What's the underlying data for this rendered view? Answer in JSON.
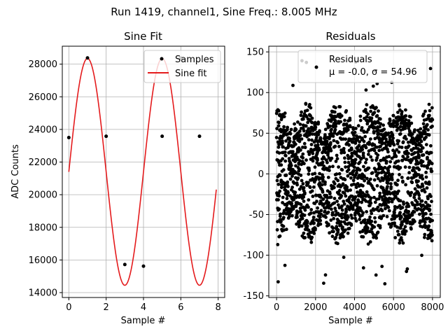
{
  "figure": {
    "suptitle": "Run 1419, channel1, Sine Freq.: 8.005 MHz"
  },
  "chart_data": [
    {
      "type": "line",
      "title": "Sine Fit",
      "xlabel": "Sample #",
      "ylabel": "ADC Counts",
      "xlim": [
        -0.35,
        8.35
      ],
      "ylim": [
        13700,
        29100
      ],
      "xticks": [
        0,
        2,
        4,
        6,
        8
      ],
      "yticks": [
        14000,
        16000,
        18000,
        20000,
        22000,
        24000,
        26000,
        28000
      ],
      "grid": true,
      "legend": {
        "placement": "top-right",
        "entries": [
          "Samples",
          "Sine fit"
        ]
      },
      "series": [
        {
          "name": "Samples",
          "kind": "scatter",
          "color": "#000000",
          "x": [
            0,
            1,
            2,
            3,
            4,
            5,
            6,
            7
          ],
          "y": [
            23500,
            28380,
            23580,
            15720,
            15620,
            23580,
            28380,
            23580
          ]
        },
        {
          "name": "Sine fit",
          "kind": "line",
          "color": "#e41a1c",
          "model": {
            "offset": 21400,
            "amplitude": 6950,
            "cycles_per_sample": 0.25,
            "phase_deg": 0
          },
          "x_range": [
            0,
            7.9
          ]
        }
      ]
    },
    {
      "type": "scatter",
      "title": "Residuals",
      "xlabel": "Sample #",
      "ylabel": "",
      "xlim": [
        -400,
        8400
      ],
      "ylim": [
        -152,
        157
      ],
      "xticks": [
        0,
        2000,
        4000,
        6000,
        8000
      ],
      "yticks": [
        -150,
        -100,
        -50,
        0,
        50,
        100,
        150
      ],
      "grid": true,
      "legend": {
        "placement": "top-right",
        "entries": [
          "Residuals",
          "μ = -0.0, σ = 54.96"
        ]
      },
      "series": [
        {
          "name": "Residuals",
          "color": "#000000",
          "n_points": 8000,
          "x_range": [
            0,
            7999
          ],
          "mean": -0.0,
          "std": 54.96,
          "range": [
            -138,
            142
          ],
          "beat_period_samples": 1600
        }
      ]
    }
  ]
}
